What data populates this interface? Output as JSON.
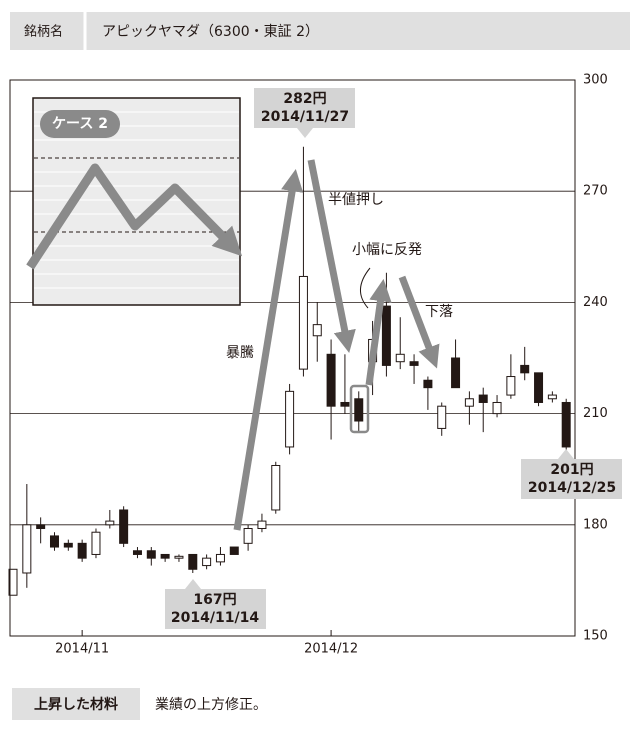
{
  "header": {
    "label": "銘柄名",
    "title": "アピックヤマダ（6300・東証 2）"
  },
  "chart_data": {
    "type": "candlestick",
    "categories": [
      null,
      null,
      null,
      null,
      null,
      "2014/11",
      null,
      null,
      null,
      null,
      null,
      null,
      null,
      null,
      null,
      null,
      null,
      null,
      null,
      null,
      null,
      null,
      null,
      "2014/12",
      null,
      null,
      null,
      null,
      null,
      null,
      null,
      null,
      null,
      null,
      null,
      null,
      null,
      null,
      null,
      null,
      null
    ],
    "open": [
      161,
      167,
      180,
      177,
      175,
      175,
      172,
      180,
      184,
      173,
      173,
      172,
      171,
      172,
      169,
      170,
      174,
      175,
      179,
      184,
      201,
      222,
      231,
      226,
      213,
      214,
      224,
      239,
      224,
      224,
      219,
      206,
      225,
      212,
      215,
      210,
      215,
      223,
      221,
      214,
      213
    ],
    "high": [
      168,
      191,
      182,
      178,
      176,
      176,
      179,
      184,
      185,
      174,
      174,
      172,
      172,
      172,
      172,
      174,
      174,
      180,
      183,
      197,
      218,
      282,
      240,
      230,
      226,
      216,
      235,
      248,
      236,
      226,
      220,
      213,
      230,
      216,
      217,
      215,
      226,
      228,
      221,
      216,
      214
    ],
    "low": [
      161,
      163,
      175,
      173,
      173,
      170,
      171,
      179,
      174,
      171,
      169,
      170,
      170,
      167,
      168,
      169,
      172,
      173,
      178,
      183,
      199,
      220,
      224,
      203,
      210,
      205,
      215,
      220,
      222,
      218,
      211,
      204,
      217,
      207,
      205,
      209,
      214,
      219,
      212,
      213,
      199
    ],
    "close": [
      168,
      180,
      179,
      174,
      174,
      171,
      178,
      181,
      175,
      172,
      171,
      171,
      171.5,
      168,
      171,
      172,
      172,
      179,
      181,
      196,
      216,
      247,
      234,
      212,
      212,
      208,
      230,
      223,
      226,
      223,
      217,
      212,
      217,
      214,
      213,
      213,
      220,
      221,
      213,
      215,
      201
    ],
    "up_color": "#ffffff",
    "down_color": "#231815",
    "ylim": [
      150,
      300
    ],
    "yticks": [
      150,
      180,
      210,
      240,
      270,
      300
    ],
    "grid": true,
    "annotations": [
      {
        "lines": [
          "282円",
          "2014/11/27"
        ]
      },
      {
        "lines": [
          "167円",
          "2014/11/14"
        ]
      },
      {
        "lines": [
          "201円",
          "2014/12/25"
        ]
      },
      {
        "lines": [
          "暴騰"
        ]
      },
      {
        "lines": [
          "半値押し"
        ]
      },
      {
        "lines": [
          "小幅に反発"
        ]
      },
      {
        "lines": [
          "下落"
        ]
      },
      {
        "lines": [
          "ケース 2"
        ]
      }
    ]
  },
  "footer": {
    "label": "上昇した材料",
    "text": "業績の上方修正。"
  }
}
